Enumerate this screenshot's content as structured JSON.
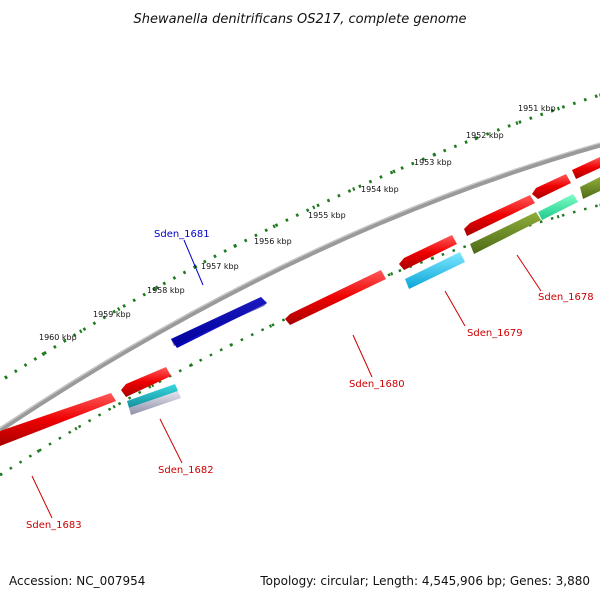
{
  "title": "Shewanella denitrificans OS217, complete genome",
  "accession": "Accession: NC_007954",
  "summary": "Topology: circular; Length: 4,545,906 bp; Genes: 3,880",
  "colors": {
    "backbone": "#8a8a8a",
    "tick": "#1f7a1f",
    "label_red": "#cc0000",
    "label_blue": "#0000cc"
  },
  "kbp_labels": [
    "1951 kbp",
    "1952 kbp",
    "1953 kbp",
    "1954 kbp",
    "1955 kbp",
    "1956 kbp",
    "1957 kbp",
    "1958 kbp",
    "1959 kbp",
    "1960 kbp"
  ],
  "genes": [
    {
      "name": "Sden_1678",
      "color": "red"
    },
    {
      "name": "Sden_1679",
      "color": "red"
    },
    {
      "name": "Sden_1680",
      "color": "red"
    },
    {
      "name": "Sden_1681",
      "color": "blue"
    },
    {
      "name": "Sden_1682",
      "color": "red"
    },
    {
      "name": "Sden_1683",
      "color": "red"
    }
  ]
}
